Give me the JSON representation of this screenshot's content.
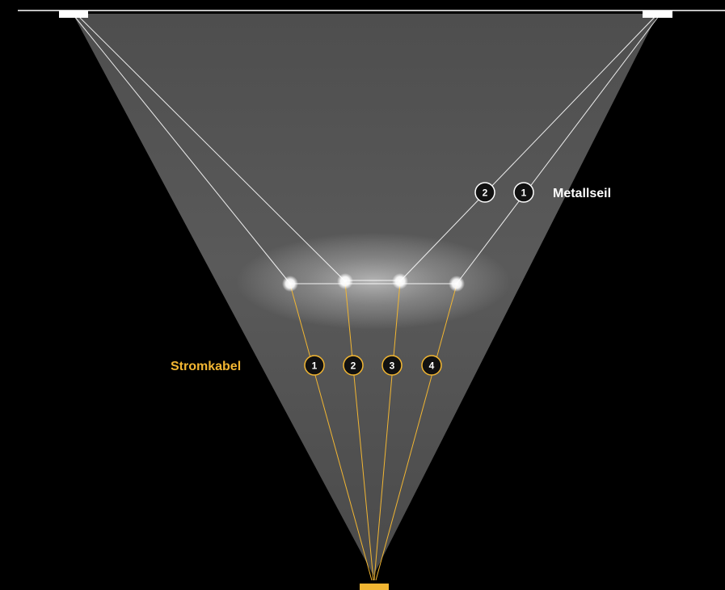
{
  "metal_cable": {
    "label": "Metallseil",
    "badges": [
      "2",
      "1"
    ],
    "color": "#ffffff"
  },
  "power_cable": {
    "label": "Stromkabel",
    "badges": [
      "1",
      "2",
      "3",
      "4"
    ],
    "color": "#f2b632"
  },
  "colors": {
    "background": "#000000",
    "light_cone": "#555555",
    "badge_fill": "#111111",
    "lamp_glow": "#ffffff"
  }
}
